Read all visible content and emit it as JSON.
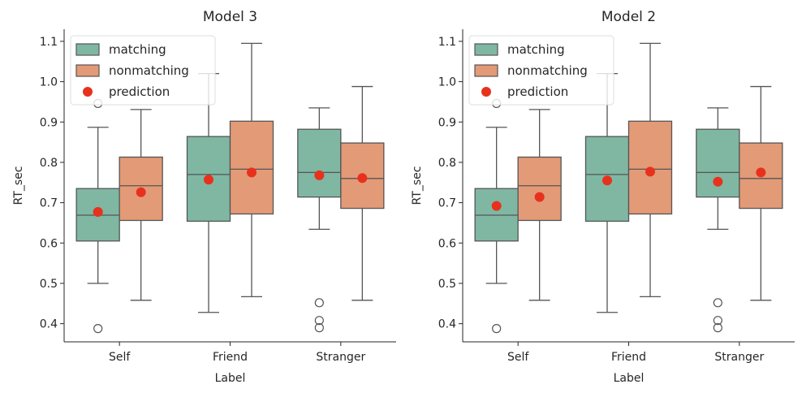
{
  "colors": {
    "matching": "#7fb7a3",
    "nonmatching": "#e39a77",
    "prediction": "#e8311d",
    "line": "#555555"
  },
  "chart_data": [
    {
      "type": "box",
      "title": "Model 3",
      "xlabel": "Label",
      "ylabel": "RT_sec",
      "ylim": [
        0.355,
        1.13
      ],
      "yticks": [
        0.4,
        0.5,
        0.6,
        0.7,
        0.8,
        0.9,
        1.0,
        1.1
      ],
      "categories": [
        "Self",
        "Friend",
        "Stranger"
      ],
      "legend": {
        "position": "top-left",
        "entries": [
          {
            "key": "matching",
            "label": "matching",
            "marker": "box"
          },
          {
            "key": "nonmatching",
            "label": "nonmatching",
            "marker": "box"
          },
          {
            "key": "prediction",
            "label": "prediction",
            "marker": "dot"
          }
        ]
      },
      "series": [
        {
          "name": "matching",
          "boxes": [
            {
              "whislo": 0.5,
              "q1": 0.605,
              "med": 0.669,
              "q3": 0.735,
              "whishi": 0.887,
              "fliers": [
                0.388,
                0.946
              ]
            },
            {
              "whislo": 0.428,
              "q1": 0.654,
              "med": 0.77,
              "q3": 0.864,
              "whishi": 1.02,
              "fliers": []
            },
            {
              "whislo": 0.634,
              "q1": 0.714,
              "med": 0.775,
              "q3": 0.882,
              "whishi": 0.935,
              "fliers": [
                0.39,
                0.408,
                0.452
              ]
            }
          ],
          "prediction": [
            0.677,
            0.757,
            0.768
          ]
        },
        {
          "name": "nonmatching",
          "boxes": [
            {
              "whislo": 0.458,
              "q1": 0.656,
              "med": 0.742,
              "q3": 0.813,
              "whishi": 0.931,
              "fliers": []
            },
            {
              "whislo": 0.467,
              "q1": 0.672,
              "med": 0.783,
              "q3": 0.902,
              "whishi": 1.095,
              "fliers": []
            },
            {
              "whislo": 0.458,
              "q1": 0.686,
              "med": 0.76,
              "q3": 0.848,
              "whishi": 0.988,
              "fliers": []
            }
          ],
          "prediction": [
            0.726,
            0.775,
            0.761
          ]
        }
      ]
    },
    {
      "type": "box",
      "title": "Model 2",
      "xlabel": "Label",
      "ylabel": "RT_sec",
      "ylim": [
        0.355,
        1.13
      ],
      "yticks": [
        0.4,
        0.5,
        0.6,
        0.7,
        0.8,
        0.9,
        1.0,
        1.1
      ],
      "categories": [
        "Self",
        "Friend",
        "Stranger"
      ],
      "legend": {
        "position": "top-left",
        "entries": [
          {
            "key": "matching",
            "label": "matching",
            "marker": "box"
          },
          {
            "key": "nonmatching",
            "label": "nonmatching",
            "marker": "box"
          },
          {
            "key": "prediction",
            "label": "prediction",
            "marker": "dot"
          }
        ]
      },
      "series": [
        {
          "name": "matching",
          "boxes": [
            {
              "whislo": 0.5,
              "q1": 0.605,
              "med": 0.669,
              "q3": 0.735,
              "whishi": 0.887,
              "fliers": [
                0.388,
                0.946
              ]
            },
            {
              "whislo": 0.428,
              "q1": 0.654,
              "med": 0.77,
              "q3": 0.864,
              "whishi": 1.02,
              "fliers": []
            },
            {
              "whislo": 0.634,
              "q1": 0.714,
              "med": 0.775,
              "q3": 0.882,
              "whishi": 0.935,
              "fliers": [
                0.39,
                0.408,
                0.452
              ]
            }
          ],
          "prediction": [
            0.692,
            0.755,
            0.752
          ]
        },
        {
          "name": "nonmatching",
          "boxes": [
            {
              "whislo": 0.458,
              "q1": 0.656,
              "med": 0.742,
              "q3": 0.813,
              "whishi": 0.931,
              "fliers": []
            },
            {
              "whislo": 0.467,
              "q1": 0.672,
              "med": 0.783,
              "q3": 0.902,
              "whishi": 1.095,
              "fliers": []
            },
            {
              "whislo": 0.458,
              "q1": 0.686,
              "med": 0.76,
              "q3": 0.848,
              "whishi": 0.988,
              "fliers": []
            }
          ],
          "prediction": [
            0.714,
            0.777,
            0.775
          ]
        }
      ]
    }
  ]
}
